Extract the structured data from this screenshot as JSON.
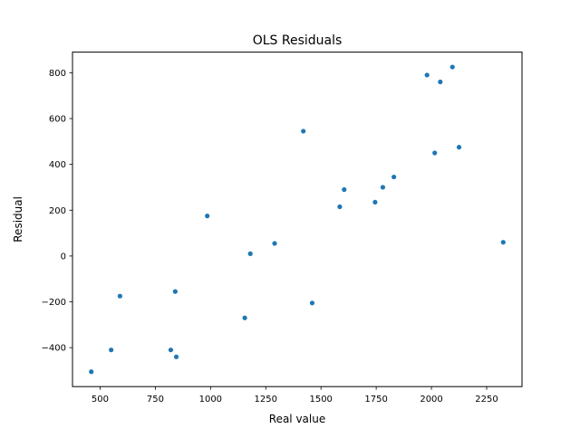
{
  "chart_data": {
    "type": "scatter",
    "title": "OLS Residuals",
    "xlabel": "Real value",
    "ylabel": "Residual",
    "xlim": [
      375,
      2410
    ],
    "ylim": [
      -570,
      890
    ],
    "xticks": [
      500,
      750,
      1000,
      1250,
      1500,
      1750,
      2000,
      2250
    ],
    "yticks": [
      -400,
      -200,
      0,
      200,
      400,
      600,
      800
    ],
    "grid": false,
    "legend": "none",
    "marker_color": "#1f77b4",
    "series": [
      {
        "x": [
          460,
          550,
          590,
          820,
          840,
          845,
          985,
          1155,
          1180,
          1290,
          1420,
          1460,
          1585,
          1605,
          1745,
          1780,
          1830,
          1980,
          2015,
          2040,
          2095,
          2125,
          2325
        ],
        "y": [
          -505,
          -410,
          -175,
          -410,
          -155,
          -440,
          175,
          -270,
          10,
          55,
          545,
          -205,
          215,
          290,
          235,
          300,
          345,
          790,
          450,
          760,
          825,
          475,
          60
        ]
      }
    ]
  }
}
